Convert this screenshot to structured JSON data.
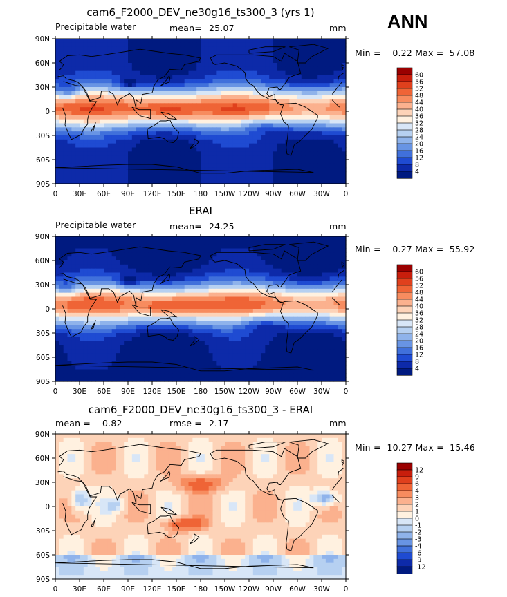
{
  "season": "ANN",
  "chart_data": [
    {
      "type": "heatmap",
      "title": "cam6_F2000_DEV_ne30g16_ts300_3 (yrs 1)",
      "left_label": "Precipitable water",
      "stat_label": "mean=",
      "stat_value": "25.07",
      "units": "mm",
      "minmax_text": "Min =    0.22 Max =  57.08",
      "min": 0.22,
      "max": 57.08,
      "colorbar_levels": [
        "60",
        "56",
        "52",
        "48",
        "44",
        "40",
        "36",
        "32",
        "28",
        "24",
        "20",
        "16",
        "12",
        "8",
        "4"
      ],
      "colorbar_colors": [
        "#9a0000",
        "#c81e0c",
        "#e0401d",
        "#ef6436",
        "#f78c5f",
        "#fbb18e",
        "#fdd3b8",
        "#fff1e0",
        "#d8e6f7",
        "#b6d0f1",
        "#8fb3eb",
        "#6894e4",
        "#4070db",
        "#1f4bd2",
        "#0d2aa9",
        "#001a80"
      ],
      "x_ticks": [
        "0",
        "30E",
        "60E",
        "90E",
        "120E",
        "150E",
        "180",
        "150W",
        "120W",
        "90W",
        "60W",
        "30W",
        "0"
      ],
      "y_ticks": [
        "90N",
        "60N",
        "30N",
        "0",
        "30S",
        "60S",
        "90S"
      ]
    },
    {
      "type": "heatmap",
      "title": "ERAI",
      "left_label": "Precipitable water",
      "stat_label": "mean=",
      "stat_value": "24.25",
      "units": "mm",
      "minmax_text": "Min =    0.27 Max =  55.92",
      "min": 0.27,
      "max": 55.92,
      "colorbar_levels": [
        "60",
        "56",
        "52",
        "48",
        "44",
        "40",
        "36",
        "32",
        "28",
        "24",
        "20",
        "16",
        "12",
        "8",
        "4"
      ],
      "colorbar_colors": [
        "#9a0000",
        "#c81e0c",
        "#e0401d",
        "#ef6436",
        "#f78c5f",
        "#fbb18e",
        "#fdd3b8",
        "#fff1e0",
        "#d8e6f7",
        "#b6d0f1",
        "#8fb3eb",
        "#6894e4",
        "#4070db",
        "#1f4bd2",
        "#0d2aa9",
        "#001a80"
      ],
      "x_ticks": [
        "0",
        "30E",
        "60E",
        "90E",
        "120E",
        "150E",
        "180",
        "150W",
        "120W",
        "90W",
        "60W",
        "30W",
        "0"
      ],
      "y_ticks": [
        "90N",
        "60N",
        "30N",
        "0",
        "30S",
        "60S",
        "90S"
      ]
    },
    {
      "type": "heatmap",
      "title": "cam6_F2000_DEV_ne30g16_ts300_3 - ERAI",
      "left_label": "mean =",
      "left_value": "0.82",
      "stat_label": "rmse =",
      "stat_value": "2.17",
      "units": "mm",
      "minmax_text": "Min = -10.27 Max =  15.46",
      "min": -10.27,
      "max": 15.46,
      "colorbar_levels": [
        "12",
        "9",
        "6",
        "4",
        "3",
        "2",
        "1",
        "0",
        "-1",
        "-2",
        "-3",
        "-4",
        "-6",
        "-9",
        "-12"
      ],
      "colorbar_colors": [
        "#9a0000",
        "#c81e0c",
        "#e0401d",
        "#ef6436",
        "#f78c5f",
        "#fbb18e",
        "#fdd3b8",
        "#fff1e0",
        "#d8e6f7",
        "#b6d0f1",
        "#8fb3eb",
        "#6894e4",
        "#4070db",
        "#1f4bd2",
        "#0d2aa9",
        "#001a80"
      ],
      "x_ticks": [
        "0",
        "30E",
        "60E",
        "90E",
        "120E",
        "150E",
        "180",
        "150W",
        "120W",
        "90W",
        "60W",
        "30W",
        "0"
      ],
      "y_ticks": [
        "90N",
        "60N",
        "30N",
        "0",
        "30S",
        "60S",
        "90S"
      ]
    }
  ]
}
